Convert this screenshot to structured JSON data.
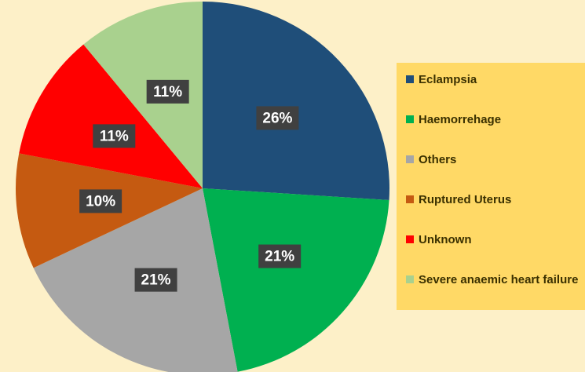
{
  "chart_data": {
    "type": "pie",
    "categories": [
      "Eclampsia",
      "Haemorrehage",
      "Others",
      "Ruptured Uterus",
      "Unknown",
      "Severe anaemic heart failure"
    ],
    "values": [
      26,
      21,
      21,
      10,
      11,
      11
    ],
    "value_labels": [
      "26%",
      "21%",
      "21%",
      "10%",
      "11%",
      "11%"
    ],
    "colors": [
      "#1f4e79",
      "#00b050",
      "#a6a6a6",
      "#c55a11",
      "#ff0000",
      "#a9d18e"
    ],
    "legend": "right"
  }
}
